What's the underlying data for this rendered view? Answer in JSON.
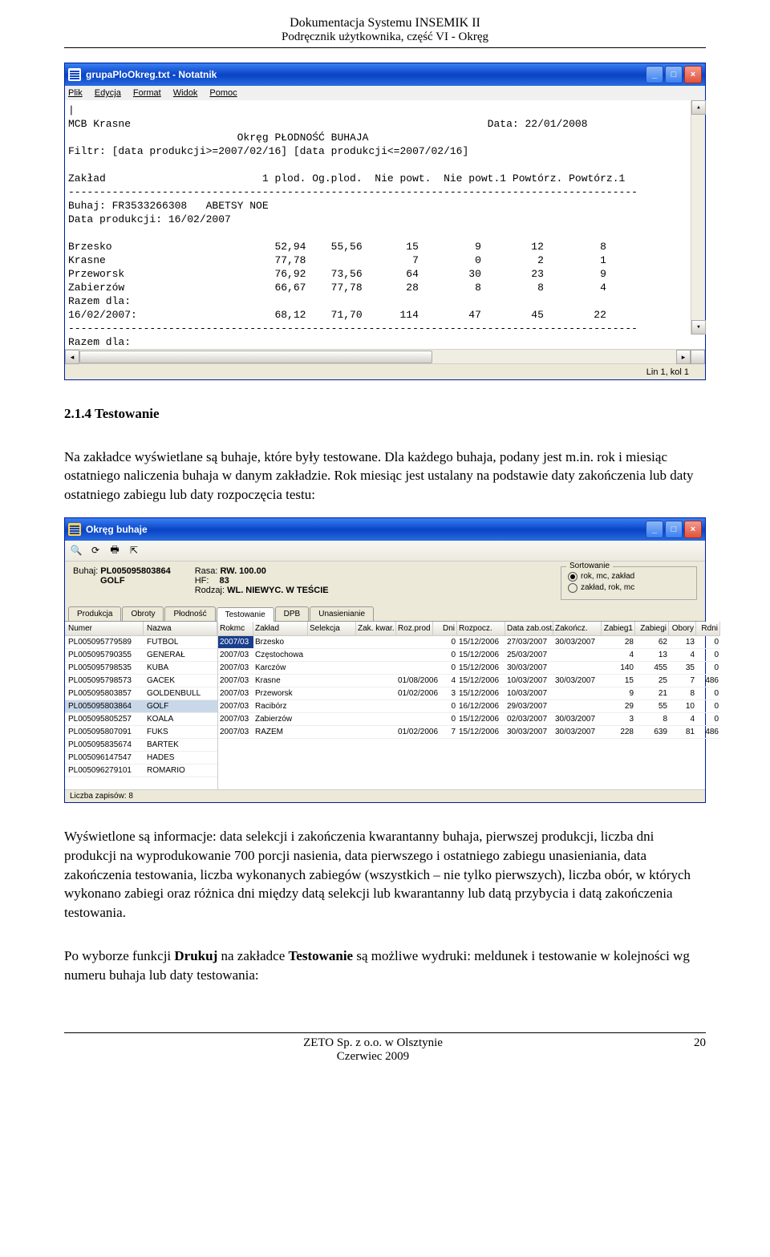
{
  "header": {
    "line1": "Dokumentacja Systemu INSEMIK II",
    "line2": "Podręcznik użytkownika, część VI - Okręg"
  },
  "notepad": {
    "title": "grupaPloOkreg.txt - Notatnik",
    "menu": [
      "Plik",
      "Edycja",
      "Format",
      "Widok",
      "Pomoc"
    ],
    "text": "|\nMCB Krasne                                                         Data: 22/01/2008\n                           Okręg PŁODNOŚĆ BUHAJA\nFiltr: [data produkcji>=2007/02/16] [data produkcji<=2007/02/16]\n\nZakład                         1 plod. Og.plod.  Nie powt.  Nie powt.1 Powtórz. Powtórz.1\n-------------------------------------------------------------------------------------------\nBuhaj: FR3533266308   ABETSY NOE\nData produkcji: 16/02/2007\n\nBrzesko                          52,94    55,56       15         9        12         8\nKrasne                           77,78                 7         0         2         1\nPrzeworsk                        76,92    73,56       64        30        23         9\nZabierzów                        66,67    77,78       28         8         8         4\nRazem dla:\n16/02/2007:                      68,12    71,70      114        47        45        22\n-------------------------------------------------------------------------------------------\nRazem dla:",
    "status": "Lin 1, kol 1"
  },
  "para1": {
    "h": "2.1.4 Testowanie",
    "p1": "Na zakładce wyświetlane są buhaje, które były testowane. Dla każdego buhaja, podany jest m.in. rok i miesiąc ostatniego naliczenia buhaja w danym zakładzie. Rok miesiąc jest ustalany na podstawie daty zakończenia lub daty ostatniego zabiegu lub daty rozpoczęcia testu:"
  },
  "app": {
    "title": "Okręg buhaje",
    "info": {
      "buhaj_lbl": "Buhaj:",
      "buhaj": "PL005095803864",
      "nazwa": "GOLF",
      "rasa_lbl": "Rasa:",
      "rasa": "RW. 100.00",
      "hf_lbl": "HF:",
      "hf": "83",
      "rodzaj_lbl": "Rodzaj:",
      "rodzaj": "WL. NIEWYC. W TEŚCIE"
    },
    "sort": {
      "legend": "Sortowanie",
      "opt1": "rok, mc, zakład",
      "opt2": "zakład, rok, mc"
    },
    "tabs": [
      "Produkcja",
      "Obroty",
      "Płodność",
      "Testowanie",
      "DPB",
      "Unasienianie"
    ],
    "left_hdr": [
      "Numer",
      "Nazwa"
    ],
    "left_rows": [
      [
        "PL005095779589",
        "FUTBOL"
      ],
      [
        "PL005095790355",
        "GENERAŁ"
      ],
      [
        "PL005095798535",
        "KUBA"
      ],
      [
        "PL005095798573",
        "GACEK"
      ],
      [
        "PL005095803857",
        "GOLDENBULL"
      ],
      [
        "PL005095803864",
        "GOLF"
      ],
      [
        "PL005095805257",
        "KOALA"
      ],
      [
        "PL005095807091",
        "FUKS"
      ],
      [
        "PL005095835674",
        "BARTEK"
      ],
      [
        "PL005096147547",
        "HADES"
      ],
      [
        "PL005096279101",
        "ROMARIO"
      ]
    ],
    "grid_hdr": [
      "Rokmc",
      "Zakład",
      "Selekcja",
      "Zak. kwar.",
      "Roz.prod",
      "Dni",
      "Rozpocz.",
      "Data zab.ost.",
      "Zakończ.",
      "Zabieg1",
      "Zabiegi",
      "Obory",
      "Rdni"
    ],
    "grid_rows": [
      [
        "2007/03",
        "Brzesko",
        "",
        "",
        "",
        "0",
        "15/12/2006",
        "27/03/2007",
        "30/03/2007",
        "28",
        "62",
        "13",
        "0"
      ],
      [
        "2007/03",
        "Częstochowa",
        "",
        "",
        "",
        "0",
        "15/12/2006",
        "25/03/2007",
        "",
        "4",
        "13",
        "4",
        "0"
      ],
      [
        "2007/03",
        "Karczów",
        "",
        "",
        "",
        "0",
        "15/12/2006",
        "30/03/2007",
        "",
        "140",
        "455",
        "35",
        "0"
      ],
      [
        "2007/03",
        "Krasne",
        "",
        "",
        "01/08/2006",
        "4",
        "15/12/2006",
        "10/03/2007",
        "30/03/2007",
        "15",
        "25",
        "7",
        "486"
      ],
      [
        "2007/03",
        "Przeworsk",
        "",
        "",
        "01/02/2006",
        "3",
        "15/12/2006",
        "10/03/2007",
        "",
        "9",
        "21",
        "8",
        "0"
      ],
      [
        "2007/03",
        "Racibórz",
        "",
        "",
        "",
        "0",
        "16/12/2006",
        "29/03/2007",
        "",
        "29",
        "55",
        "10",
        "0"
      ],
      [
        "2007/03",
        "Zabierzów",
        "",
        "",
        "",
        "0",
        "15/12/2006",
        "02/03/2007",
        "30/03/2007",
        "3",
        "8",
        "4",
        "0"
      ],
      [
        "2007/03",
        "RAZEM",
        "",
        "",
        "01/02/2006",
        "7",
        "15/12/2006",
        "30/03/2007",
        "30/03/2007",
        "228",
        "639",
        "81",
        "486"
      ]
    ],
    "status": "Liczba zapisów: 8"
  },
  "para2": {
    "p1": "Wyświetlone są informacje: data selekcji i zakończenia kwarantanny buhaja, pierwszej produkcji, liczba dni produkcji na wyprodukowanie 700 porcji nasienia, data pierwszego i ostatniego zabiegu unasieniania, data zakończenia testowania, liczba wykonanych zabiegów (wszystkich – nie tylko pierwszych), liczba obór, w których wykonano zabiegi oraz różnica dni między datą selekcji lub kwarantanny lub datą przybycia i datą zakończenia testowania.",
    "p2a": "Po wyborze funkcji ",
    "p2b": "Drukuj",
    "p2c": " na zakładce ",
    "p2d": "Testowanie",
    "p2e": " są możliwe wydruki: meldunek i testowanie w kolejności wg numeru buhaja lub daty testowania:"
  },
  "footer": {
    "l1": "ZETO Sp. z o.o. w Olsztynie",
    "l2": "Czerwiec 2009",
    "page": "20"
  }
}
